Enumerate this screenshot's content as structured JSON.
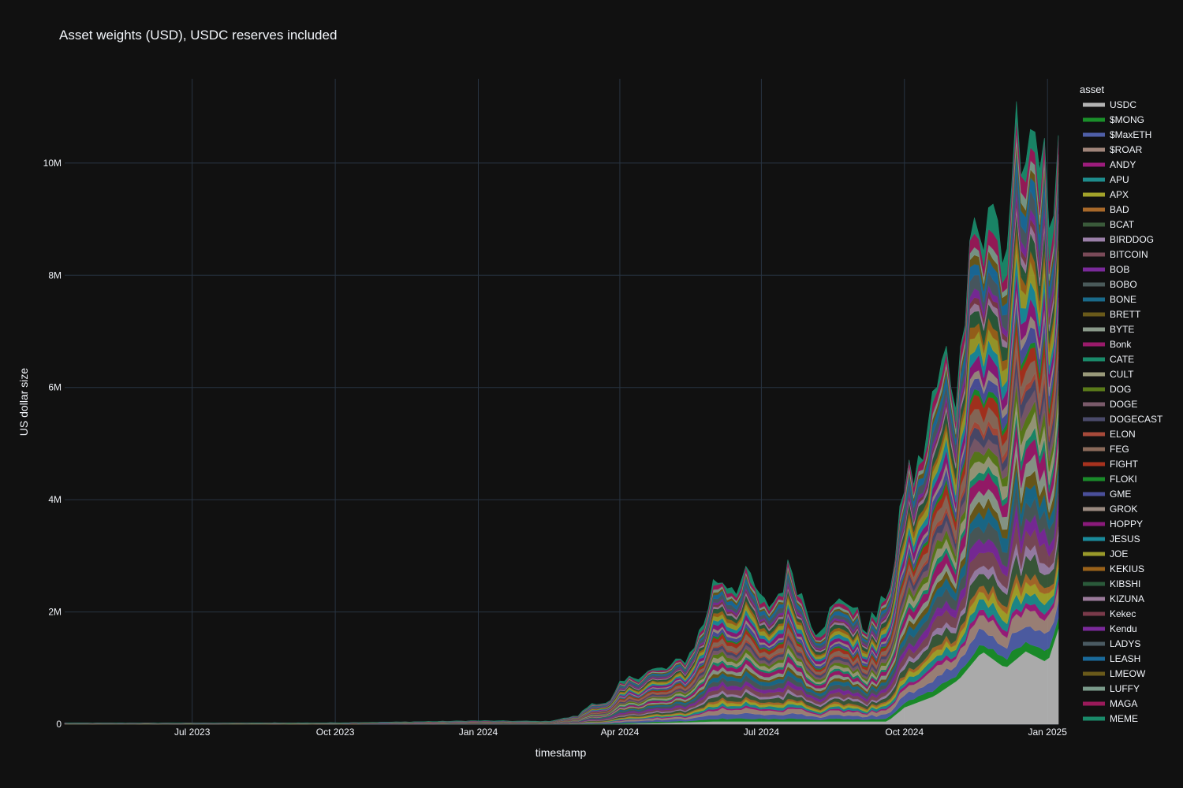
{
  "chart_data": {
    "type": "area",
    "title": "Asset weights (USD), USDC reserves included",
    "xlabel": "timestamp",
    "ylabel": "US dollar size",
    "x_ticks": [
      "Jul 2023",
      "Oct 2023",
      "Jan 2024",
      "Apr 2024",
      "Jul 2024",
      "Oct 2024",
      "Jan 2025"
    ],
    "x_tick_dates": [
      "2023-07-01",
      "2023-10-01",
      "2024-01-01",
      "2024-04-01",
      "2024-07-01",
      "2024-10-01",
      "2025-01-01"
    ],
    "x_range": [
      "2023-04-10",
      "2025-01-08"
    ],
    "y_ticks": [
      "0",
      "2M",
      "4M",
      "6M",
      "8M",
      "10M"
    ],
    "y_tick_values": [
      0,
      2000000,
      4000000,
      6000000,
      8000000,
      10000000
    ],
    "ylim": [
      0,
      11500000
    ],
    "grid": true,
    "legend_title": "asset",
    "legend_position": "right",
    "total_profile": {
      "x": [
        "2023-04-10",
        "2023-07-01",
        "2023-10-01",
        "2023-11-15",
        "2024-01-01",
        "2024-02-15",
        "2024-03-05",
        "2024-03-15",
        "2024-03-25",
        "2024-04-01",
        "2024-04-10",
        "2024-04-20",
        "2024-05-01",
        "2024-05-15",
        "2024-05-25",
        "2024-06-01",
        "2024-06-15",
        "2024-06-25",
        "2024-07-01",
        "2024-07-10",
        "2024-07-20",
        "2024-07-28",
        "2024-08-05",
        "2024-08-15",
        "2024-08-25",
        "2024-09-05",
        "2024-09-15",
        "2024-09-25",
        "2024-10-01",
        "2024-10-10",
        "2024-10-20",
        "2024-10-28",
        "2024-11-05",
        "2024-11-12",
        "2024-11-20",
        "2024-11-28",
        "2024-12-05",
        "2024-12-12",
        "2024-12-18",
        "2024-12-25",
        "2025-01-01",
        "2025-01-08"
      ],
      "y": [
        20000,
        20000,
        25000,
        40000,
        60000,
        50000,
        150000,
        400000,
        350000,
        700000,
        850000,
        950000,
        980000,
        1200000,
        1800000,
        2600000,
        2500000,
        2600000,
        2100000,
        2200000,
        2850000,
        2200000,
        1700000,
        2000000,
        2300000,
        1700000,
        2000000,
        2800000,
        4300000,
        4500000,
        5800000,
        6500000,
        5900000,
        9300000,
        8600000,
        9100000,
        8200000,
        10900000,
        9200000,
        10500000,
        9000000,
        10700000
      ]
    },
    "usdc_profile": {
      "x": [
        "2023-04-10",
        "2024-03-25",
        "2024-06-01",
        "2024-09-20",
        "2024-10-01",
        "2024-10-20",
        "2024-11-05",
        "2024-11-20",
        "2024-12-05",
        "2024-12-18",
        "2025-01-01",
        "2025-01-08"
      ],
      "y": [
        0,
        0,
        50000,
        50000,
        300000,
        500000,
        800000,
        1300000,
        1000000,
        1300000,
        1100000,
        1700000
      ]
    },
    "series": [
      {
        "name": "USDC",
        "color": "#b3b3b3"
      },
      {
        "name": "$MONG",
        "color": "#1a8f2a"
      },
      {
        "name": "$MaxETH",
        "color": "#4f5fa8"
      },
      {
        "name": "$ROAR",
        "color": "#a0857a"
      },
      {
        "name": "ANDY",
        "color": "#9c1c7c"
      },
      {
        "name": "APU",
        "color": "#1e8c8c"
      },
      {
        "name": "APX",
        "color": "#a3a32a"
      },
      {
        "name": "BAD",
        "color": "#a8692a"
      },
      {
        "name": "BCAT",
        "color": "#3a5a3a"
      },
      {
        "name": "BIRDDOG",
        "color": "#9a7fa8"
      },
      {
        "name": "BITCOIN",
        "color": "#7a4a58"
      },
      {
        "name": "BOB",
        "color": "#7a2a9a"
      },
      {
        "name": "BOBO",
        "color": "#4a5a5a"
      },
      {
        "name": "BONE",
        "color": "#1a6a8a"
      },
      {
        "name": "BRETT",
        "color": "#6a5a1a"
      },
      {
        "name": "BYTE",
        "color": "#8a9a8a"
      },
      {
        "name": "Bonk",
        "color": "#9a1a6a"
      },
      {
        "name": "CATE",
        "color": "#1a8a6a"
      },
      {
        "name": "CULT",
        "color": "#9a9a7a"
      },
      {
        "name": "DOG",
        "color": "#5a7a1a"
      },
      {
        "name": "DOGE",
        "color": "#7a5a6a"
      },
      {
        "name": "DOGECAST",
        "color": "#4a4a6a"
      },
      {
        "name": "ELON",
        "color": "#a84a3a"
      },
      {
        "name": "FEG",
        "color": "#8a6a5a"
      },
      {
        "name": "FIGHT",
        "color": "#a8321e"
      },
      {
        "name": "FLOKI",
        "color": "#1a8a2a"
      },
      {
        "name": "GME",
        "color": "#4a4f9a"
      },
      {
        "name": "GROK",
        "color": "#9a8a80"
      },
      {
        "name": "HOPPY",
        "color": "#8a1a7a"
      },
      {
        "name": "JESUS",
        "color": "#1a8a9a"
      },
      {
        "name": "JOE",
        "color": "#9a9a2a"
      },
      {
        "name": "KEKIUS",
        "color": "#9a621a"
      },
      {
        "name": "KIBSHI",
        "color": "#2a5a3a"
      },
      {
        "name": "KIZUNA",
        "color": "#9a7a9a"
      },
      {
        "name": "Kekec",
        "color": "#7a3a4a"
      },
      {
        "name": "Kendu",
        "color": "#7a2a9a"
      },
      {
        "name": "LADYS",
        "color": "#4a5a62"
      },
      {
        "name": "LEASH",
        "color": "#1a6a9a"
      },
      {
        "name": "LMEOW",
        "color": "#6a5a1a"
      },
      {
        "name": "LUFFY",
        "color": "#7a9a8a"
      },
      {
        "name": "MAGA",
        "color": "#9a1a5a"
      },
      {
        "name": "MEME",
        "color": "#1a8a6a"
      }
    ]
  }
}
